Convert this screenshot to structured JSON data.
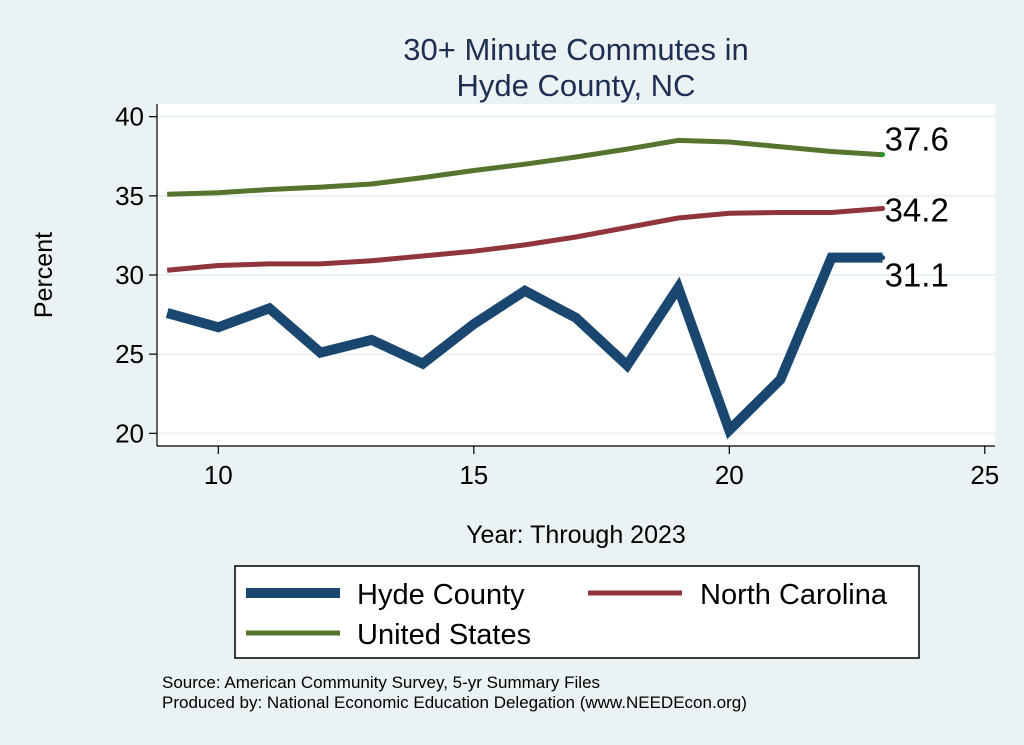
{
  "chart_data": {
    "type": "line",
    "title_lines": [
      "30+ Minute Commutes in",
      "Hyde County, NC"
    ],
    "xlabel": "Year: Through 2023",
    "ylabel": "Percent",
    "xlim": [
      8.8,
      25.2
    ],
    "ylim": [
      19.2,
      40.8
    ],
    "x_ticks": [
      10,
      15,
      20,
      25
    ],
    "y_ticks": [
      20,
      25,
      30,
      35,
      40
    ],
    "x": [
      9,
      10,
      11,
      12,
      13,
      14,
      15,
      16,
      17,
      18,
      19,
      20,
      21,
      22,
      23
    ],
    "series": [
      {
        "name": "Hyde County",
        "color": "#1a476f",
        "values": [
          27.6,
          26.7,
          27.9,
          25.1,
          25.9,
          24.4,
          26.9,
          29.0,
          27.3,
          24.3,
          29.2,
          20.2,
          23.4,
          31.1,
          31.1
        ],
        "end_label": "31.1"
      },
      {
        "name": "North Carolina",
        "color": "#90353b",
        "values": [
          30.3,
          30.6,
          30.7,
          30.7,
          30.9,
          31.2,
          31.5,
          31.9,
          32.4,
          33.0,
          33.6,
          33.9,
          33.95,
          33.95,
          34.2
        ],
        "end_label": "34.2"
      },
      {
        "name": "United States",
        "color": "#55752f",
        "values": [
          35.1,
          35.2,
          35.4,
          35.55,
          35.75,
          36.15,
          36.6,
          37.0,
          37.45,
          37.95,
          38.5,
          38.4,
          38.1,
          37.8,
          37.6
        ],
        "end_label": "37.6"
      }
    ],
    "legend": [
      "Hyde County",
      "North Carolina",
      "United States"
    ],
    "grid": true,
    "notes": [
      "Source: American Community Survey, 5-yr Summary Files",
      "Produced by: National Economic Education Delegation (www.NEEDEcon.org)"
    ]
  }
}
